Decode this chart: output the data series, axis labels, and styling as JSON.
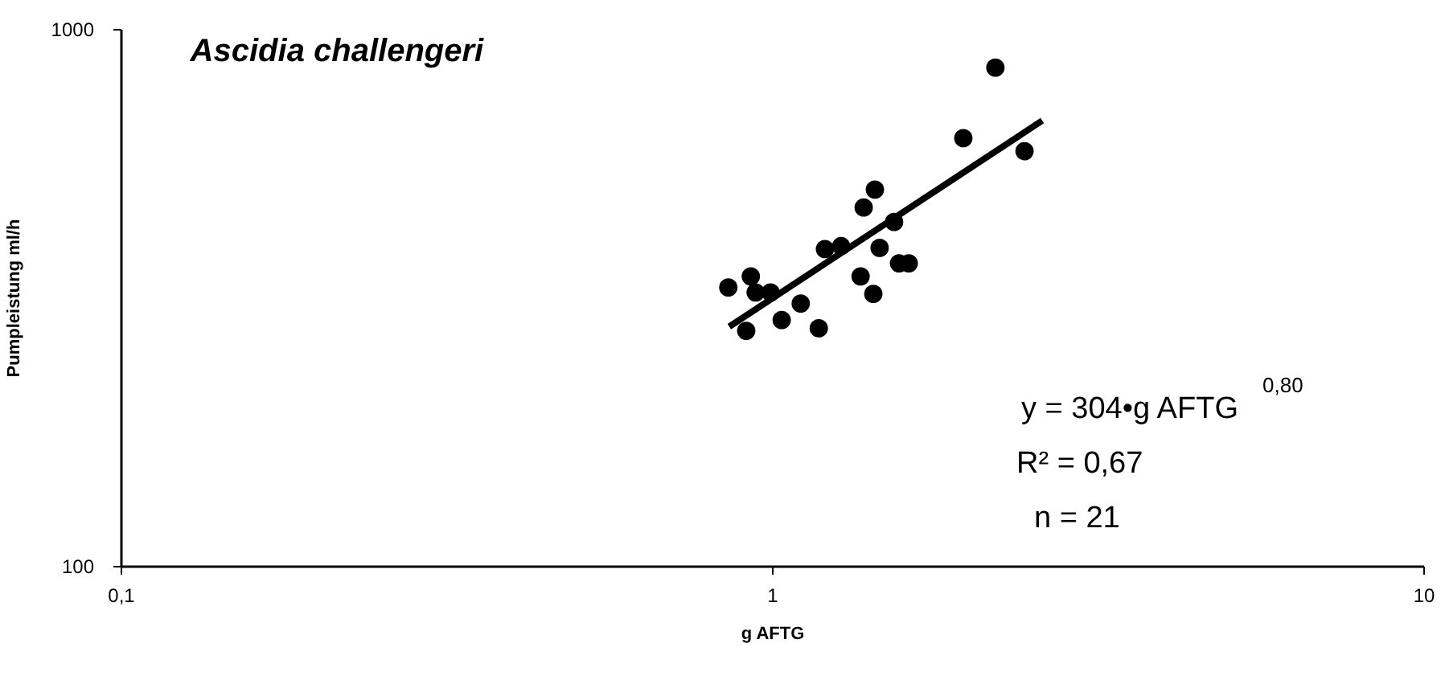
{
  "chart_data": {
    "type": "scatter",
    "title": "Ascidia challengeri",
    "xlabel": "g AFTG",
    "ylabel": "Pumpleistung ml/h",
    "log": "xy",
    "grid": false,
    "marker": "circle",
    "xlim": [
      0.1,
      10
    ],
    "xticks": [
      {
        "value": 0.1,
        "label": "0,1"
      },
      1,
      10
    ],
    "ylim": [
      100,
      1000
    ],
    "yticks": [
      100,
      1000
    ],
    "series": [
      {
        "color": "#000000",
        "x": [
          0.857,
          0.928,
          0.944,
          0.995,
          0.913,
          1.035,
          1.107,
          1.18,
          1.206,
          1.277,
          1.383,
          1.439,
          1.368,
          1.431,
          1.463,
          1.54,
          1.567,
          1.622,
          1.967,
          2.203,
          2.442
        ],
        "values": [
          330,
          346,
          323,
          323,
          274,
          287,
          308,
          277,
          389,
          394,
          465,
          502,
          346,
          321,
          391,
          437,
          366,
          366,
          626,
          847,
          592
        ]
      },
      {
        "type": "line",
        "color": "#000000",
        "line_style": "solid",
        "marker": "none",
        "x": [
          0.86,
          2.6
        ],
        "values": [
          279,
          675
        ]
      }
    ],
    "annotations": [
      "y = 304•g AFTG$^{0,80}$",
      "R² = 0,67",
      "n = 21"
    ]
  }
}
